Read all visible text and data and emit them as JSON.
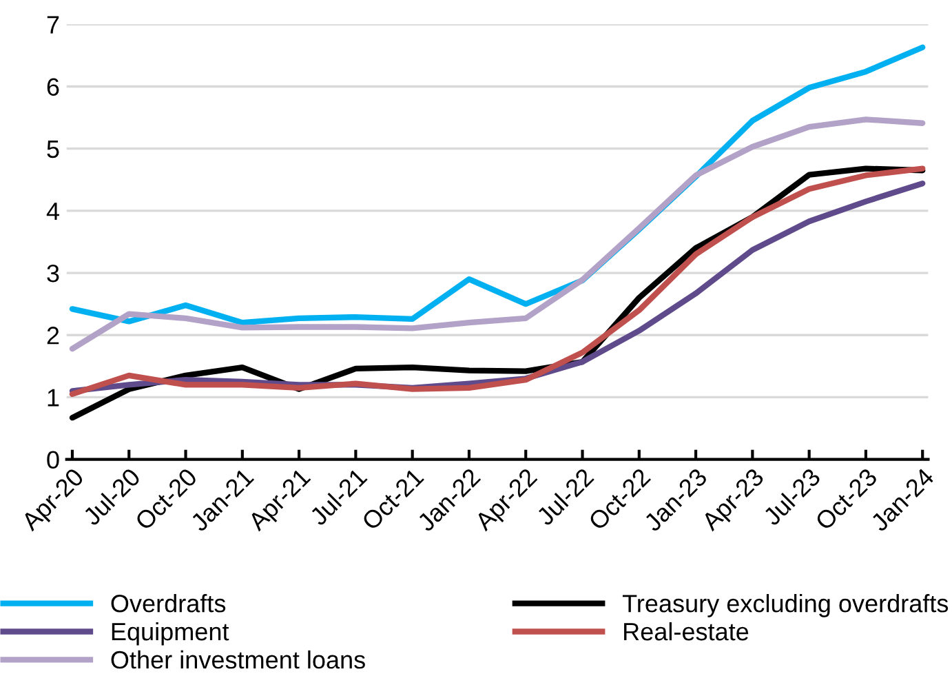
{
  "chart_data": {
    "type": "line",
    "categories": [
      "Apr-20",
      "Jul-20",
      "Oct-20",
      "Jan-21",
      "Apr-21",
      "Jul-21",
      "Oct-21",
      "Jan-22",
      "Apr-22",
      "Jul-22",
      "Oct-22",
      "Jan-23",
      "Apr-23",
      "Jul-23",
      "Oct-23",
      "Jan-24"
    ],
    "series": [
      {
        "name": "Overdrafts",
        "color": "#00b0f0",
        "values": [
          2.42,
          2.22,
          2.48,
          2.2,
          2.27,
          2.29,
          2.26,
          2.9,
          2.5,
          2.88,
          3.7,
          4.55,
          5.45,
          5.98,
          6.24,
          6.63
        ]
      },
      {
        "name": "Treasury excluding overdrafts",
        "color": "#000000",
        "values": [
          0.67,
          1.13,
          1.35,
          1.48,
          1.13,
          1.46,
          1.48,
          1.43,
          1.42,
          1.57,
          2.6,
          3.4,
          3.9,
          4.58,
          4.68,
          4.65
        ]
      },
      {
        "name": "Equipment",
        "color": "#5f4b8b",
        "values": [
          1.1,
          1.2,
          1.28,
          1.25,
          1.2,
          1.2,
          1.15,
          1.22,
          1.3,
          1.57,
          2.07,
          2.67,
          3.37,
          3.83,
          4.15,
          4.44
        ]
      },
      {
        "name": "Real-estate",
        "color": "#c0504d",
        "values": [
          1.05,
          1.35,
          1.2,
          1.2,
          1.15,
          1.22,
          1.13,
          1.15,
          1.28,
          1.72,
          2.4,
          3.3,
          3.9,
          4.35,
          4.57,
          4.68
        ]
      },
      {
        "name": "Other investment loans",
        "color": "#b3a2c7",
        "values": [
          1.78,
          2.34,
          2.27,
          2.12,
          2.13,
          2.13,
          2.11,
          2.2,
          2.27,
          2.89,
          3.72,
          4.57,
          5.03,
          5.35,
          5.47,
          5.41
        ]
      }
    ],
    "ylim": [
      0,
      7
    ],
    "yticks": [
      0,
      1,
      2,
      3,
      4,
      5,
      6,
      7
    ],
    "grid": "y",
    "legend": "bottom",
    "marker": "none",
    "line_style": "solid"
  }
}
